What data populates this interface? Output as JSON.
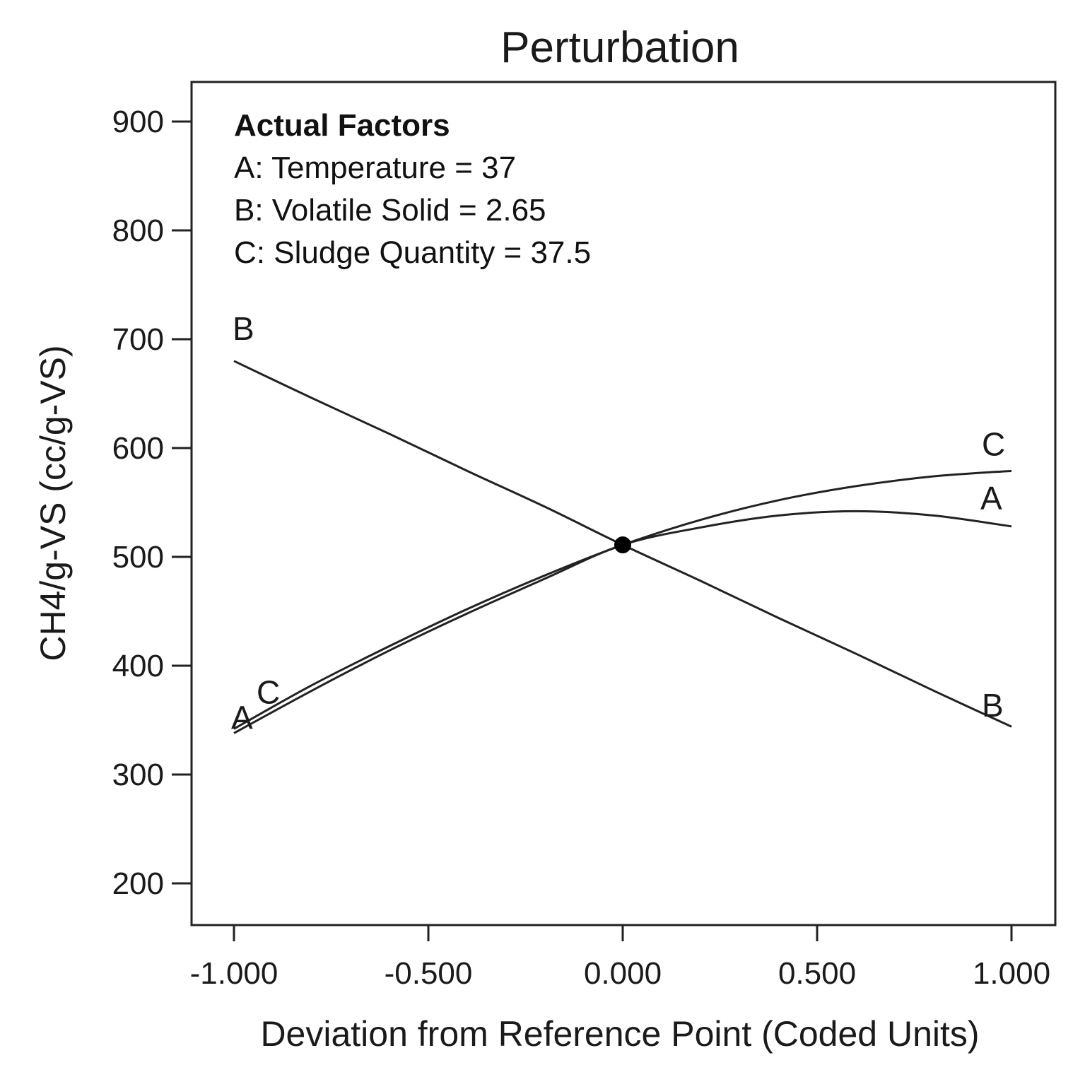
{
  "chart_data": {
    "type": "line",
    "title": "Perturbation",
    "xlabel": "Deviation from Reference Point (Coded Units)",
    "ylabel": "CH4/g-VS (cc/g-VS)",
    "xlim": [
      -1.1,
      1.1
    ],
    "ylim": [
      160,
      940
    ],
    "x_ticks": [
      -1.0,
      -0.5,
      0.0,
      0.5,
      1.0
    ],
    "x_tick_labels": [
      "-1.000",
      "-0.500",
      "0.000",
      "0.500",
      "1.000"
    ],
    "y_ticks": [
      200,
      300,
      400,
      500,
      600,
      700,
      800,
      900
    ],
    "y_tick_labels": [
      "200",
      "300",
      "400",
      "500",
      "600",
      "700",
      "800",
      "900"
    ],
    "grid": false,
    "legend": {
      "title": "Actual Factors",
      "lines": [
        "A: Temperature = 37",
        "B: Volatile Solid = 2.65",
        "C: Sludge Quantity = 37.5"
      ],
      "placement": "top-left"
    },
    "x": [
      -1.0,
      -0.8,
      -0.6,
      -0.4,
      -0.2,
      0.0,
      0.2,
      0.4,
      0.6,
      0.8,
      1.0
    ],
    "series": [
      {
        "name": "A",
        "label": "A",
        "values": [
          338,
          377,
          414,
          448,
          480,
          511,
          527,
          538,
          542,
          538,
          528
        ]
      },
      {
        "name": "B",
        "label": "B",
        "values": [
          680,
          646,
          613,
          579,
          546,
          511,
          478,
          444,
          411,
          377,
          344
        ]
      },
      {
        "name": "C",
        "label": "C",
        "values": [
          342,
          382,
          418,
          452,
          483,
          511,
          534,
          552,
          565,
          574,
          579
        ]
      }
    ],
    "reference_point": {
      "x": 0.0,
      "y": 511
    }
  }
}
